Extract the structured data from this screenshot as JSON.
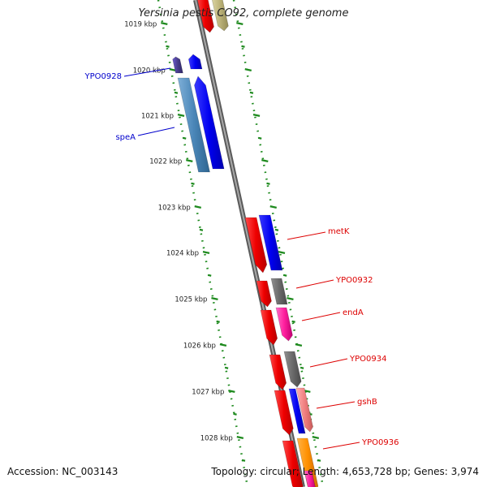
{
  "title": "Yersinia pestis CO92, complete genome",
  "footer": {
    "accession": "Accession: NC_003143",
    "summary": "Topology: circular; Length: 4,653,728 bp; Genes: 3,974"
  },
  "colors": {
    "backbone": "#7f7f7f",
    "tick": "#1e8a1e",
    "ruler_text": "#222222",
    "label_blue": "#0000cc",
    "label_red": "#dd0000"
  },
  "ruler": {
    "unit": "kbp",
    "labels": [
      "1019 kbp",
      "1020 kbp",
      "1021 kbp",
      "1022 kbp",
      "1023 kbp",
      "1024 kbp",
      "1025 kbp",
      "1026 kbp",
      "1027 kbp",
      "1028 kbp"
    ]
  },
  "genes": [
    {
      "name": "YPO0928",
      "strand": "reverse",
      "color": "blue",
      "icon": "blue-gene-arrow"
    },
    {
      "name": "speA",
      "strand": "reverse",
      "color": "blue",
      "icon": "blue-gene-arrow"
    },
    {
      "name": "metK",
      "strand": "forward",
      "color": "red",
      "icon": "red-gene-arrow"
    },
    {
      "name": "YPO0932",
      "strand": "forward",
      "color": "red",
      "icon": "red-gene-arrow"
    },
    {
      "name": "endA",
      "strand": "forward",
      "color": "red",
      "icon": "red-gene-arrow"
    },
    {
      "name": "YPO0934",
      "strand": "forward",
      "color": "red",
      "icon": "red-gene-arrow"
    },
    {
      "name": "gshB",
      "strand": "forward",
      "color": "red",
      "icon": "red-gene-arrow"
    },
    {
      "name": "YPO0936",
      "strand": "forward",
      "color": "red",
      "icon": "red-gene-arrow"
    }
  ]
}
